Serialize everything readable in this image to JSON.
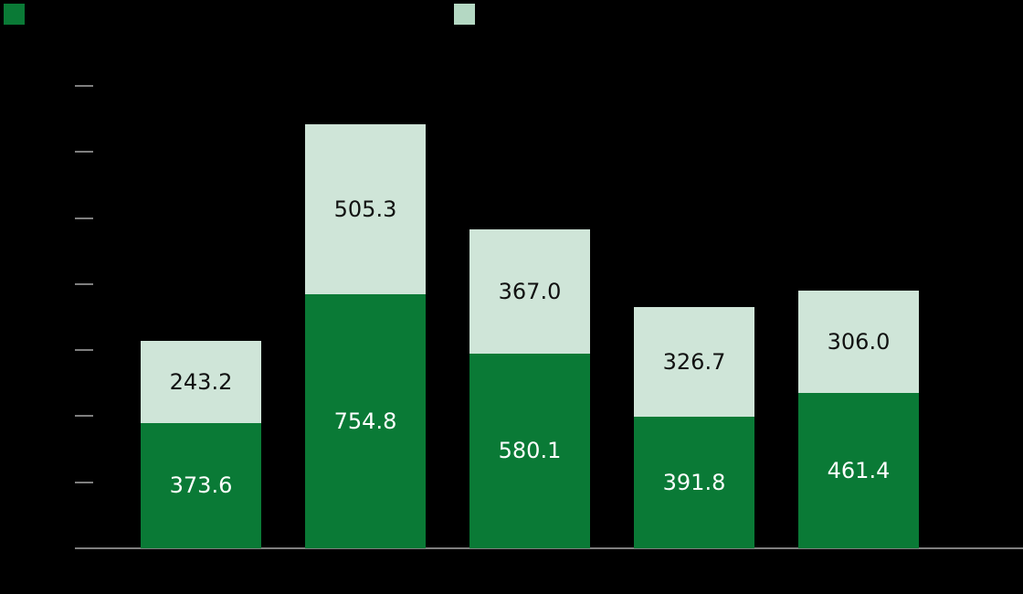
{
  "legend": [
    {
      "label": "",
      "color": "#0a7a36"
    },
    {
      "label": "",
      "color": "#cfe5d8"
    }
  ],
  "chart_data": {
    "type": "bar",
    "stacked": true,
    "title": "",
    "xlabel": "",
    "ylabel": "",
    "categories": [
      "",
      "",
      "",
      "",
      ""
    ],
    "series": [
      {
        "name": "",
        "color": "#0a7a36",
        "values": [
          373.6,
          754.8,
          580.1,
          391.8,
          461.4
        ]
      },
      {
        "name": "",
        "color": "#cfe5d8",
        "values": [
          243.2,
          505.3,
          367.0,
          326.7,
          306.0
        ]
      }
    ],
    "ylim": [
      0,
      1400
    ],
    "y_ticks_count": 8,
    "grid": false,
    "legend_position": "top",
    "data_labels": true
  }
}
